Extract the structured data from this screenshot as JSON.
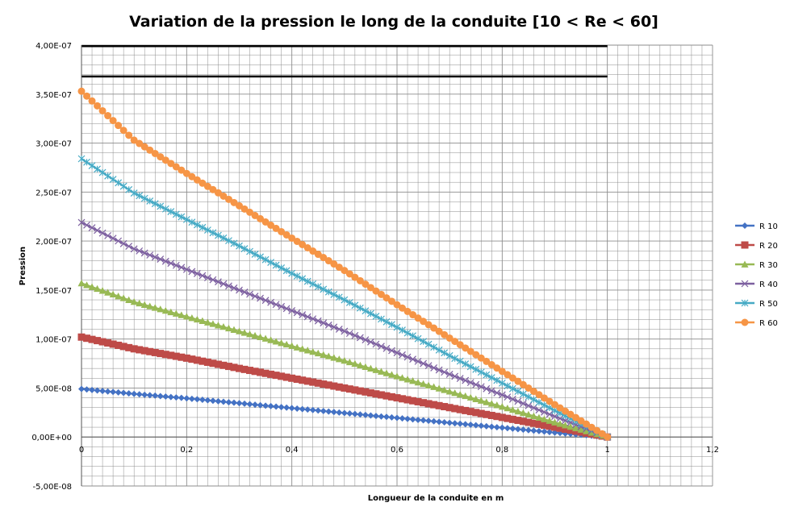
{
  "chart_data": {
    "type": "line",
    "title": "Variation de la pression le long de la conduite [10 < Re < 60]",
    "xlabel": "Longueur de la conduite en m",
    "ylabel": "Pression",
    "xlim": [
      0,
      1.2
    ],
    "ylim": [
      -5e-08,
      4e-07
    ],
    "xticks": [
      "0",
      "0,2",
      "0,4",
      "0,6",
      "0,8",
      "1",
      "1,2"
    ],
    "yticks": [
      "-5,00E-08",
      "0,00E+00",
      "5,00E-08",
      "1,00E-07",
      "1,50E-07",
      "2,00E-07",
      "2,50E-07",
      "3,00E-07",
      "3,50E-07",
      "4,00E-07"
    ],
    "grid": true,
    "legend_position": "right",
    "x": [
      0,
      0.1,
      0.2,
      0.3,
      0.4,
      0.5,
      0.6,
      0.7,
      0.8,
      0.9,
      1.0
    ],
    "series": [
      {
        "name": "R 10",
        "marker": "diamond",
        "color": "#4472c4",
        "values": [
          4.9e-08,
          4.4e-08,
          3.95e-08,
          3.45e-08,
          2.95e-08,
          2.45e-08,
          1.95e-08,
          1.45e-08,
          9.5e-09,
          4.5e-09,
          0
        ]
      },
      {
        "name": "R 20",
        "marker": "square",
        "color": "#be4b48",
        "values": [
          1.02e-07,
          9e-08,
          8.05e-08,
          7e-08,
          6e-08,
          5e-08,
          4e-08,
          3e-08,
          2e-08,
          1e-08,
          0
        ]
      },
      {
        "name": "R 30",
        "marker": "triangle",
        "color": "#98b954",
        "values": [
          1.57e-07,
          1.38e-07,
          1.23e-07,
          1.08e-07,
          9.3e-08,
          7.8e-08,
          6.2e-08,
          4.65e-08,
          3.1e-08,
          1.5e-08,
          0
        ]
      },
      {
        "name": "R 40",
        "marker": "x",
        "color": "#7d60a0",
        "values": [
          2.19e-07,
          1.92e-07,
          1.71e-07,
          1.5e-07,
          1.29e-07,
          1.08e-07,
          8.6e-08,
          6.4e-08,
          4.3e-08,
          2.1e-08,
          0
        ]
      },
      {
        "name": "R 50",
        "marker": "star",
        "color": "#46aac5",
        "values": [
          2.84e-07,
          2.49e-07,
          2.22e-07,
          1.95e-07,
          1.67e-07,
          1.4e-07,
          1.12e-07,
          8.3e-08,
          5.5e-08,
          2.7e-08,
          0
        ]
      },
      {
        "name": "R 60",
        "marker": "circle",
        "color": "#f69546",
        "values": [
          3.53e-07,
          3.03e-07,
          2.69e-07,
          2.36e-07,
          2.03e-07,
          1.7e-07,
          1.35e-07,
          1.01e-07,
          6.7e-08,
          3.3e-08,
          0
        ]
      }
    ],
    "reference_lines": [
      3.99e-07,
      3.68e-07
    ]
  }
}
